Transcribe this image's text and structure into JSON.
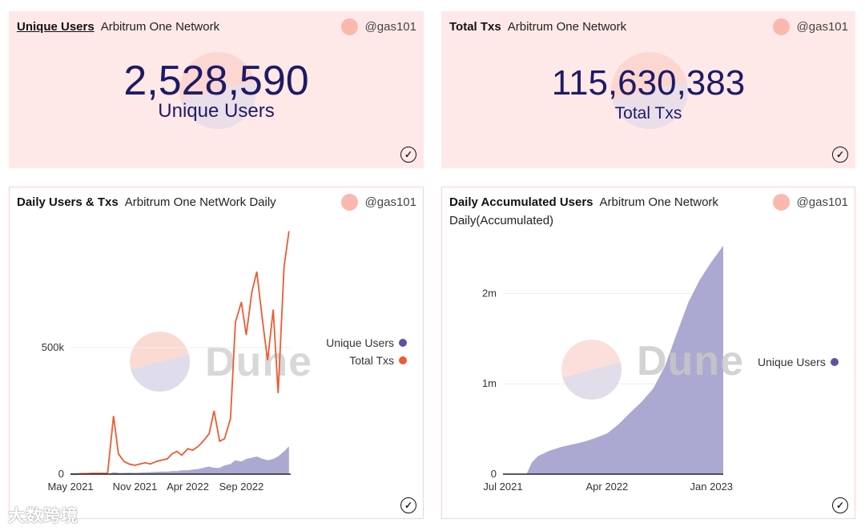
{
  "cards": [
    {
      "title": "Unique Users",
      "subtitle": "Arbitrum One Network",
      "author": "@gas101",
      "value": "2,528,590",
      "label": "Unique Users"
    },
    {
      "title": "Total Txs",
      "subtitle": "Arbitrum One Network",
      "author": "@gas101",
      "value": "115,630,383",
      "label": "Total Txs"
    },
    {
      "title": "Daily Users & Txs",
      "subtitle": "Arbitrum One NetWork Daily",
      "author": "@gas101"
    },
    {
      "title": "Daily Accumulated Users",
      "subtitle": "Arbitrum One Network",
      "subtitle2": "Daily(Accumulated)",
      "author": "@gas101"
    }
  ],
  "watermark": {
    "dune": "Dune",
    "site": "大数跨境"
  },
  "colors": {
    "users": "#8b87c0",
    "txs": "#ee5a32",
    "pink": "#ffe9e8"
  },
  "chart_data": [
    {
      "type": "area+line",
      "title": "Daily Users & Txs",
      "x": [
        "2021-05-01",
        "2021-05-15",
        "2021-06-01",
        "2021-06-15",
        "2021-07-01",
        "2021-07-15",
        "2021-08-01",
        "2021-08-15",
        "2021-09-01",
        "2021-09-15",
        "2021-10-01",
        "2021-10-15",
        "2021-11-01",
        "2021-11-15",
        "2021-12-01",
        "2021-12-15",
        "2022-01-01",
        "2022-01-15",
        "2022-02-01",
        "2022-02-15",
        "2022-03-01",
        "2022-03-15",
        "2022-04-01",
        "2022-04-15",
        "2022-05-01",
        "2022-05-15",
        "2022-06-01",
        "2022-06-15",
        "2022-07-01",
        "2022-07-15",
        "2022-08-01",
        "2022-08-15",
        "2022-09-01",
        "2022-09-15",
        "2022-10-01",
        "2022-10-15",
        "2022-11-01",
        "2022-11-15",
        "2022-12-01",
        "2022-12-15",
        "2023-01-01",
        "2023-01-15"
      ],
      "series": [
        {
          "name": "Unique Users",
          "type": "area",
          "values": [
            0,
            0,
            0,
            0,
            0,
            0,
            0,
            0,
            8000,
            5000,
            5000,
            6000,
            5000,
            6000,
            7000,
            8000,
            9000,
            10000,
            10000,
            12000,
            12000,
            15000,
            15000,
            18000,
            20000,
            25000,
            30000,
            25000,
            25000,
            35000,
            40000,
            55000,
            50000,
            60000,
            65000,
            70000,
            60000,
            55000,
            60000,
            70000,
            90000,
            110000
          ]
        },
        {
          "name": "Total Txs",
          "type": "line",
          "values": [
            0,
            0,
            2000,
            2000,
            3000,
            3000,
            3000,
            3000,
            230000,
            80000,
            50000,
            40000,
            35000,
            40000,
            45000,
            40000,
            50000,
            55000,
            60000,
            80000,
            90000,
            75000,
            100000,
            95000,
            110000,
            130000,
            160000,
            250000,
            130000,
            140000,
            220000,
            600000,
            680000,
            550000,
            720000,
            800000,
            600000,
            450000,
            650000,
            320000,
            820000,
            960000
          ]
        }
      ],
      "xticks": [
        "May 2021",
        "Nov 2021",
        "Apr 2022",
        "Sep 2022"
      ],
      "yticks": [
        "0",
        "500k"
      ],
      "ylim": [
        0,
        1000000
      ],
      "legend": "right"
    },
    {
      "type": "area",
      "title": "Daily Accumulated Users",
      "x": [
        "2021-07-01",
        "2021-08-01",
        "2021-09-01",
        "2021-09-15",
        "2021-10-01",
        "2021-11-01",
        "2021-12-01",
        "2022-01-01",
        "2022-02-01",
        "2022-03-01",
        "2022-04-01",
        "2022-05-01",
        "2022-06-01",
        "2022-07-01",
        "2022-08-01",
        "2022-09-01",
        "2022-10-01",
        "2022-11-01",
        "2022-12-01",
        "2023-01-01",
        "2023-02-01"
      ],
      "series": [
        {
          "name": "Unique Users",
          "values": [
            0,
            0,
            0,
            130000,
            200000,
            260000,
            300000,
            330000,
            360000,
            400000,
            450000,
            550000,
            680000,
            800000,
            950000,
            1200000,
            1550000,
            1900000,
            2150000,
            2350000,
            2530000
          ]
        }
      ],
      "xticks": [
        "Jul 2021",
        "Apr 2022",
        "Jan 2023"
      ],
      "yticks": [
        "0",
        "1m",
        "2m"
      ],
      "ylim": [
        0,
        2500000
      ],
      "legend": "right"
    }
  ]
}
